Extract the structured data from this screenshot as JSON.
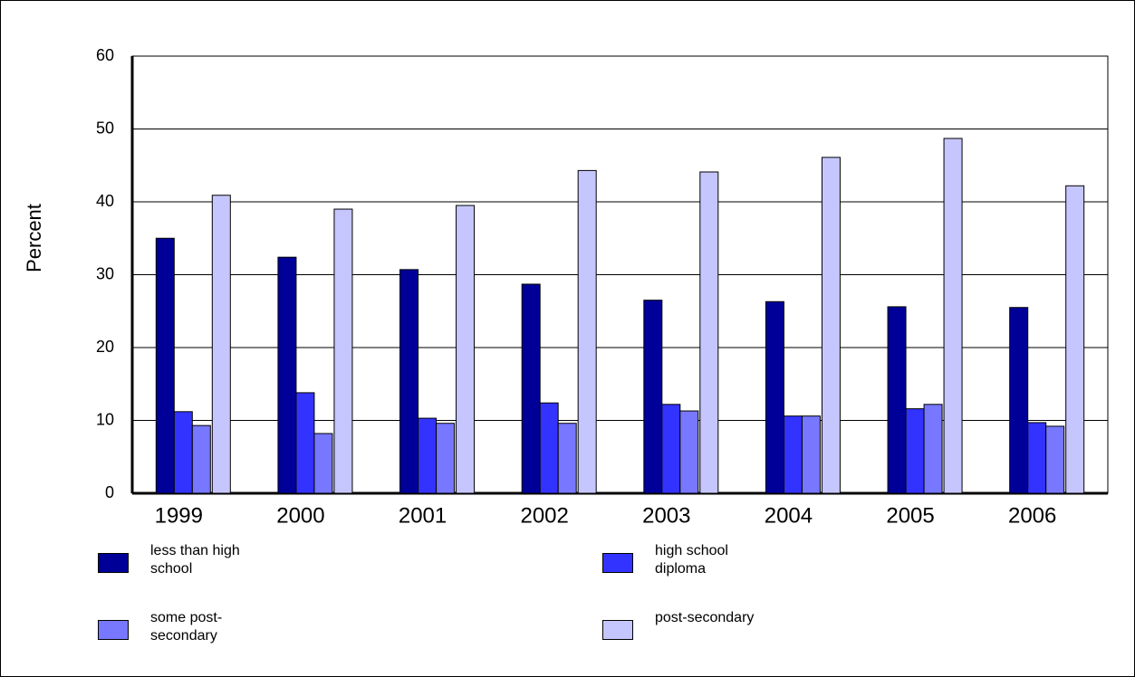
{
  "chart_data": {
    "type": "bar",
    "y_label": "Percent",
    "categories": [
      "1999",
      "2000",
      "2001",
      "2002",
      "2003",
      "2004",
      "2005",
      "2006"
    ],
    "series": [
      {
        "name": "less than high school",
        "color": "#000099",
        "values": [
          35.0,
          32.4,
          30.7,
          28.7,
          26.5,
          26.3,
          25.6,
          25.5
        ]
      },
      {
        "name": "high school diploma",
        "color": "#3333ff",
        "values": [
          11.2,
          13.8,
          10.3,
          12.4,
          12.2,
          10.6,
          11.6,
          9.7
        ]
      },
      {
        "name": "some post-secondary",
        "color": "#7777ff",
        "values": [
          9.3,
          8.2,
          9.6,
          9.6,
          11.3,
          10.6,
          12.2,
          9.2
        ]
      },
      {
        "name": "post-secondary",
        "color": "#c6c6ff",
        "values": [
          40.9,
          39.0,
          39.5,
          44.3,
          44.1,
          46.1,
          48.7,
          42.2
        ]
      }
    ],
    "ylim": [
      0,
      60
    ],
    "yticks": [
      0,
      10,
      20,
      30,
      40,
      50,
      60
    ],
    "grid": true
  }
}
